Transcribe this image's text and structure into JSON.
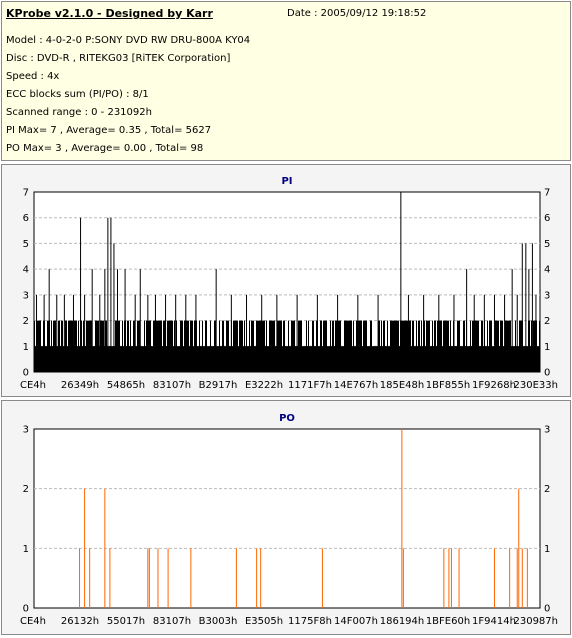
{
  "header": {
    "title": "KProbe v2.1.0 - Designed by Karr",
    "date": "Date : 2005/09/12 19:18:52",
    "lines": [
      "Model : 4-0-2-0 P:SONY    DVD RW DRU-800A  KY04",
      "Disc : DVD-R , RITEKG03 [RiTEK Corporation]",
      "Speed : 4x",
      "ECC blocks sum (PI/PO) : 8/1",
      "Scanned range : 0 - 231092h",
      "PI Max= 7 , Average= 0.35 , Total= 5627",
      "PO Max= 3 , Average= 0.00 , Total= 98"
    ]
  },
  "colors": {
    "header_bg": "#ffffe3",
    "panel_bg": "#f4f4f4",
    "plot_bg": "#ffffff",
    "pi_series": "#000000",
    "po_series": "#ff6600",
    "grid": "#bbbbbb",
    "title": "#000080"
  },
  "chart_data": [
    {
      "type": "bar",
      "title": "PI",
      "xlabel": "",
      "ylabel": "",
      "ylim": [
        0,
        7
      ],
      "yticks": [
        0,
        1,
        2,
        3,
        4,
        5,
        6,
        7
      ],
      "grid": true,
      "x_tick_labels": [
        "CE4h",
        "26349h",
        "54865h",
        "83107h",
        "B2917h",
        "E3222h",
        "1171F7h",
        "14E767h",
        "185E48h",
        "1BF855h",
        "1F9268h",
        "230E33h"
      ],
      "x_range_hex": [
        "CE4h",
        "230E33h"
      ],
      "baseline_note": "dense bars at 1-2",
      "spikes": [
        {
          "x": 0.005,
          "y": 3
        },
        {
          "x": 0.012,
          "y": 2
        },
        {
          "x": 0.02,
          "y": 3
        },
        {
          "x": 0.03,
          "y": 4
        },
        {
          "x": 0.045,
          "y": 3
        },
        {
          "x": 0.06,
          "y": 3
        },
        {
          "x": 0.078,
          "y": 3
        },
        {
          "x": 0.092,
          "y": 6
        },
        {
          "x": 0.1,
          "y": 3
        },
        {
          "x": 0.115,
          "y": 4
        },
        {
          "x": 0.13,
          "y": 3
        },
        {
          "x": 0.14,
          "y": 4
        },
        {
          "x": 0.146,
          "y": 6
        },
        {
          "x": 0.152,
          "y": 6
        },
        {
          "x": 0.158,
          "y": 5
        },
        {
          "x": 0.165,
          "y": 4
        },
        {
          "x": 0.18,
          "y": 4
        },
        {
          "x": 0.2,
          "y": 3
        },
        {
          "x": 0.21,
          "y": 4
        },
        {
          "x": 0.225,
          "y": 3
        },
        {
          "x": 0.24,
          "y": 3
        },
        {
          "x": 0.26,
          "y": 3
        },
        {
          "x": 0.28,
          "y": 3
        },
        {
          "x": 0.3,
          "y": 3
        },
        {
          "x": 0.32,
          "y": 3
        },
        {
          "x": 0.36,
          "y": 4
        },
        {
          "x": 0.39,
          "y": 3
        },
        {
          "x": 0.42,
          "y": 3
        },
        {
          "x": 0.45,
          "y": 3
        },
        {
          "x": 0.48,
          "y": 3
        },
        {
          "x": 0.52,
          "y": 3
        },
        {
          "x": 0.56,
          "y": 3
        },
        {
          "x": 0.6,
          "y": 3
        },
        {
          "x": 0.64,
          "y": 3
        },
        {
          "x": 0.68,
          "y": 3
        },
        {
          "x": 0.725,
          "y": 7
        },
        {
          "x": 0.74,
          "y": 3
        },
        {
          "x": 0.77,
          "y": 3
        },
        {
          "x": 0.8,
          "y": 3
        },
        {
          "x": 0.83,
          "y": 3
        },
        {
          "x": 0.855,
          "y": 4
        },
        {
          "x": 0.87,
          "y": 3
        },
        {
          "x": 0.89,
          "y": 3
        },
        {
          "x": 0.91,
          "y": 3
        },
        {
          "x": 0.93,
          "y": 3
        },
        {
          "x": 0.945,
          "y": 4
        },
        {
          "x": 0.955,
          "y": 3
        },
        {
          "x": 0.965,
          "y": 5
        },
        {
          "x": 0.972,
          "y": 5
        },
        {
          "x": 0.978,
          "y": 4
        },
        {
          "x": 0.985,
          "y": 5
        },
        {
          "x": 0.992,
          "y": 3
        }
      ],
      "max": 7,
      "average": 0.35,
      "total": 5627
    },
    {
      "type": "bar",
      "title": "PO",
      "xlabel": "",
      "ylabel": "",
      "ylim": [
        0,
        3
      ],
      "yticks": [
        0,
        1,
        2,
        3
      ],
      "grid": true,
      "x_tick_labels": [
        "CE4h",
        "26132h",
        "55017h",
        "83107h",
        "B3003h",
        "E3505h",
        "1175F8h",
        "14F007h",
        "186194h",
        "1BFE60h",
        "1F9414h",
        "230987h"
      ],
      "spikes": [
        {
          "x": 0.09,
          "y": 1
        },
        {
          "x": 0.1,
          "y": 2
        },
        {
          "x": 0.11,
          "y": 1
        },
        {
          "x": 0.14,
          "y": 2
        },
        {
          "x": 0.15,
          "y": 1
        },
        {
          "x": 0.225,
          "y": 1
        },
        {
          "x": 0.228,
          "y": 1
        },
        {
          "x": 0.245,
          "y": 1
        },
        {
          "x": 0.265,
          "y": 1
        },
        {
          "x": 0.31,
          "y": 1
        },
        {
          "x": 0.4,
          "y": 1
        },
        {
          "x": 0.44,
          "y": 1
        },
        {
          "x": 0.448,
          "y": 1
        },
        {
          "x": 0.57,
          "y": 1
        },
        {
          "x": 0.727,
          "y": 3
        },
        {
          "x": 0.73,
          "y": 1
        },
        {
          "x": 0.81,
          "y": 1
        },
        {
          "x": 0.82,
          "y": 1
        },
        {
          "x": 0.825,
          "y": 1
        },
        {
          "x": 0.84,
          "y": 1
        },
        {
          "x": 0.91,
          "y": 1
        },
        {
          "x": 0.94,
          "y": 1
        },
        {
          "x": 0.955,
          "y": 1
        },
        {
          "x": 0.958,
          "y": 2
        },
        {
          "x": 0.965,
          "y": 1
        },
        {
          "x": 0.975,
          "y": 1
        }
      ],
      "max": 3,
      "average": 0.0,
      "total": 98
    }
  ]
}
